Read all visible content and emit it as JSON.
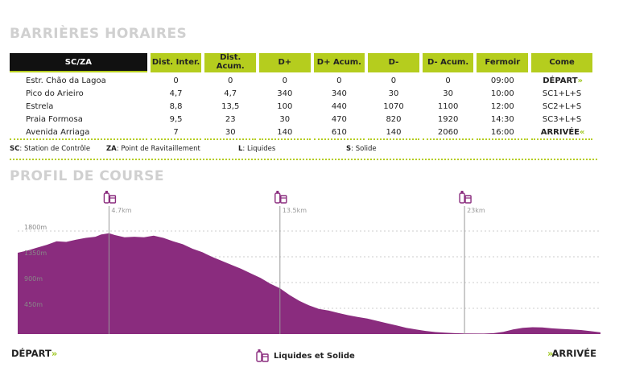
{
  "titles": {
    "barriers": "BARRIÈRES HORAIRES",
    "profile": "PROFIL DE COURSE"
  },
  "table": {
    "headers": [
      "SC/ZA",
      "Dist. Inter.",
      "Dist. Acum.",
      "D+",
      "D+ Acum.",
      "D-",
      "D- Acum.",
      "Fermoir",
      "Come"
    ],
    "rows": [
      {
        "name": "Estr. Chão da Lagoa",
        "inter": "0",
        "acum": "0",
        "dplus": "0",
        "dplus_acum": "0",
        "dminus": "0",
        "dminus_acum": "0",
        "fermoir": "09:00",
        "come": "DÉPART"
      },
      {
        "name": "Pico do Arieiro",
        "inter": "4,7",
        "acum": "4,7",
        "dplus": "340",
        "dplus_acum": "340",
        "dminus": "30",
        "dminus_acum": "30",
        "fermoir": "10:00",
        "come": "SC1+L+S"
      },
      {
        "name": "Estrela",
        "inter": "8,8",
        "acum": "13,5",
        "dplus": "100",
        "dplus_acum": "440",
        "dminus": "1070",
        "dminus_acum": "1100",
        "fermoir": "12:00",
        "come": "SC2+L+S"
      },
      {
        "name": "Praia Formosa",
        "inter": "9,5",
        "acum": "23",
        "dplus": "30",
        "dplus_acum": "470",
        "dminus": "820",
        "dminus_acum": "1920",
        "fermoir": "14:30",
        "come": "SC3+L+S"
      },
      {
        "name": "Avenida Arriaga",
        "inter": "7",
        "acum": "30",
        "dplus": "140",
        "dplus_acum": "610",
        "dminus": "140",
        "dminus_acum": "2060",
        "fermoir": "16:00",
        "come": "ARRIVÉE"
      }
    ]
  },
  "legend": [
    {
      "abbr": "SC",
      "text": ": Station de Contrôle"
    },
    {
      "abbr": "ZA",
      "text": ": Point de Ravitaillement"
    },
    {
      "abbr": "L",
      "text": ": Liquides"
    },
    {
      "abbr": "S",
      "text": ": Solide"
    }
  ],
  "profile": {
    "y_ticks": [
      {
        "value": 1800,
        "label": "1800m"
      },
      {
        "value": 1350,
        "label": "1350m"
      },
      {
        "value": 900,
        "label": "900m"
      },
      {
        "value": 450,
        "label": "450m"
      }
    ],
    "ylim": [
      0,
      1800
    ],
    "xlim": [
      0,
      30
    ],
    "fill_color": "#8a2c7e",
    "markers": [
      {
        "km": 4.7,
        "label": "4.7km"
      },
      {
        "km": 13.5,
        "label": "13.5km"
      },
      {
        "km": 23,
        "label": "23km"
      }
    ],
    "elevation": [
      [
        0,
        1420
      ],
      [
        0.5,
        1460
      ],
      [
        1,
        1510
      ],
      [
        1.5,
        1560
      ],
      [
        2,
        1620
      ],
      [
        2.5,
        1610
      ],
      [
        3,
        1650
      ],
      [
        3.5,
        1680
      ],
      [
        4,
        1700
      ],
      [
        4.3,
        1740
      ],
      [
        4.7,
        1760
      ],
      [
        5,
        1730
      ],
      [
        5.5,
        1690
      ],
      [
        6,
        1700
      ],
      [
        6.5,
        1690
      ],
      [
        7,
        1720
      ],
      [
        7.5,
        1680
      ],
      [
        8,
        1620
      ],
      [
        8.5,
        1570
      ],
      [
        9,
        1490
      ],
      [
        9.5,
        1430
      ],
      [
        10,
        1350
      ],
      [
        10.5,
        1280
      ],
      [
        11,
        1210
      ],
      [
        11.5,
        1140
      ],
      [
        12,
        1060
      ],
      [
        12.5,
        980
      ],
      [
        13,
        880
      ],
      [
        13.5,
        800
      ],
      [
        14,
        680
      ],
      [
        14.5,
        580
      ],
      [
        15,
        500
      ],
      [
        15.5,
        440
      ],
      [
        16,
        410
      ],
      [
        16.5,
        370
      ],
      [
        17,
        330
      ],
      [
        17.5,
        300
      ],
      [
        18,
        270
      ],
      [
        18.5,
        230
      ],
      [
        19,
        190
      ],
      [
        19.5,
        150
      ],
      [
        20,
        110
      ],
      [
        20.5,
        80
      ],
      [
        21,
        55
      ],
      [
        21.5,
        35
      ],
      [
        22,
        25
      ],
      [
        22.5,
        15
      ],
      [
        23,
        10
      ],
      [
        24,
        8
      ],
      [
        24.5,
        15
      ],
      [
        25,
        40
      ],
      [
        25.5,
        80
      ],
      [
        26,
        110
      ],
      [
        26.5,
        120
      ],
      [
        27,
        115
      ],
      [
        27.5,
        100
      ],
      [
        28,
        90
      ],
      [
        28.5,
        80
      ],
      [
        29,
        70
      ],
      [
        29.5,
        50
      ],
      [
        30,
        30
      ]
    ]
  },
  "footer": {
    "start": "DÉPART",
    "end": "ARRIVÉE",
    "supply_label": "Liquides et Solide"
  }
}
